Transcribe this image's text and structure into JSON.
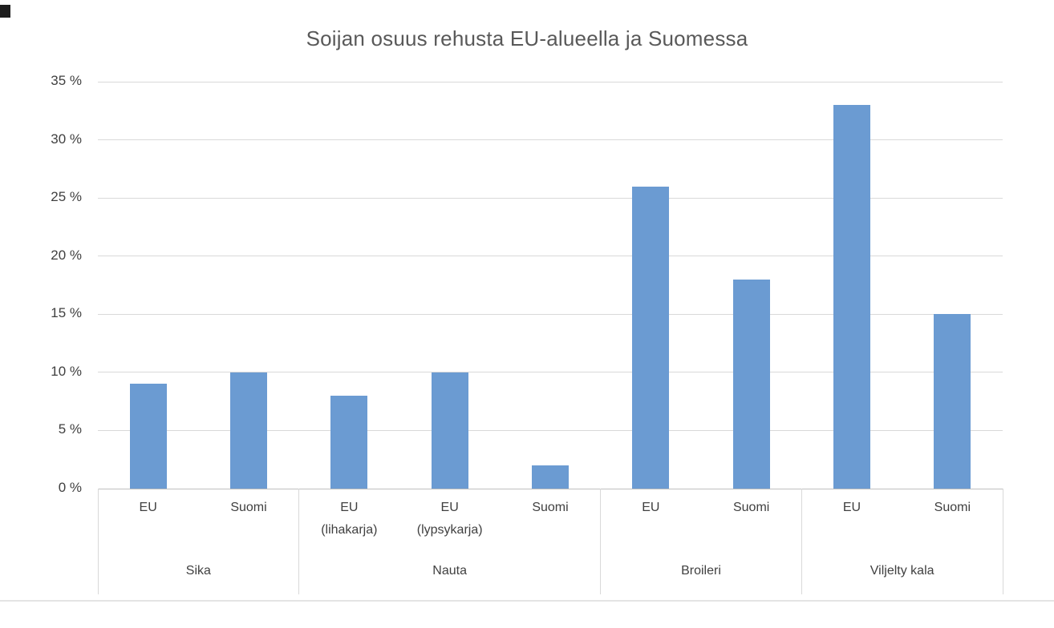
{
  "page": {
    "background": "#FFFFFF"
  },
  "chart_data": {
    "type": "bar",
    "title": "Soijan osuus rehusta EU-alueella ja Suomessa",
    "xlabel": "",
    "ylabel": "",
    "ylim": [
      0,
      35
    ],
    "yticks": [
      0,
      5,
      10,
      15,
      20,
      25,
      30,
      35
    ],
    "ytick_labels": [
      "0 %",
      "5 %",
      "10 %",
      "15 %",
      "20 %",
      "25 %",
      "30 %",
      "35 %"
    ],
    "grid": "horizontal",
    "legend": "none",
    "value_unit": "percent",
    "groups": [
      {
        "label": "Sika",
        "bars": [
          {
            "label": "EU",
            "value": 9
          },
          {
            "label": "Suomi",
            "value": 10
          }
        ]
      },
      {
        "label": "Nauta",
        "bars": [
          {
            "label": "EU\n(lihakarja)",
            "value": 8
          },
          {
            "label": "EU\n(lypsykarja)",
            "value": 10
          },
          {
            "label": "Suomi",
            "value": 2
          }
        ]
      },
      {
        "label": "Broileri",
        "bars": [
          {
            "label": "EU",
            "value": 26
          },
          {
            "label": "Suomi",
            "value": 18
          }
        ]
      },
      {
        "label": "Viljelty kala",
        "bars": [
          {
            "label": "EU",
            "value": 33
          },
          {
            "label": "Suomi",
            "value": 15
          }
        ]
      }
    ],
    "colors": {
      "bar": "#6B9BD2",
      "gridline": "#D9D9D9",
      "axis": "#BFBFBF",
      "text": "#404040",
      "title": "#595959"
    }
  }
}
